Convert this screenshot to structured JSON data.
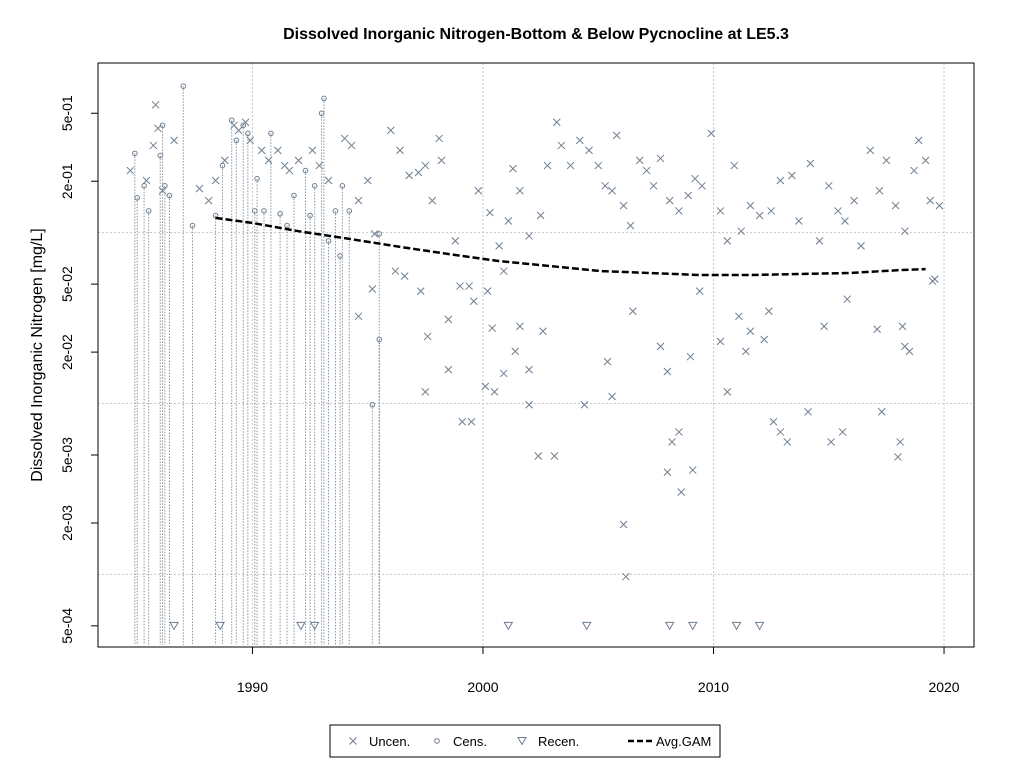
{
  "chart_data": {
    "type": "scatter",
    "title": "Dissolved Inorganic Nitrogen-Bottom & Below Pycnocline at LE5.3",
    "ylabel": "Dissolved Inorganic Nitrogen [mg/L]",
    "log_y": true,
    "xlim": [
      1983.3,
      2021.3
    ],
    "ylim": [
      0.000376,
      0.984
    ],
    "xticks": [
      1990,
      2000,
      2010,
      2020
    ],
    "yticks": [
      {
        "value": 0.5,
        "label": "5e-01"
      },
      {
        "value": 0.2,
        "label": "2e-01"
      },
      {
        "value": 0.05,
        "label": "5e-02"
      },
      {
        "value": 0.02,
        "label": "2e-02"
      },
      {
        "value": 0.005,
        "label": "5e-03"
      },
      {
        "value": 0.002,
        "label": "2e-03"
      },
      {
        "value": 0.0005,
        "label": "5e-04"
      }
    ],
    "ygrid": [
      0.1,
      0.01,
      0.001
    ],
    "grid": true,
    "legend": "bottom",
    "series": [
      {
        "name": "Uncen.",
        "marker": "x",
        "color": "#6e7f91",
        "x": [
          1984.7,
          1985.8,
          1985.9,
          1985.7,
          1985.4,
          1986.1,
          1986.6,
          1987.7,
          1988.1,
          1988.4,
          1988.8,
          1989.2,
          1989.4,
          1989.7,
          1989.9,
          1990.4,
          1990.7,
          1991.1,
          1991.4,
          1991.6,
          1992.0,
          1992.6,
          1992.9,
          1993.3,
          1994.0,
          1994.3,
          1994.6,
          1995.0,
          1995.3,
          1996.0,
          1996.4,
          1996.8,
          1997.2,
          1997.5,
          1998.1,
          1997.8,
          1998.2,
          1998.8,
          1999.0,
          1999.4,
          1999.6,
          1999.8,
          2000.2,
          2000.3,
          2000.7,
          2000.9,
          2001.1,
          2001.3,
          2001.6,
          2002.0,
          2002.5,
          2002.8,
          2003.2,
          2003.4,
          2003.8,
          2004.2,
          2004.6,
          2005.0,
          2005.3,
          2005.6,
          2005.8,
          2006.1,
          2006.4,
          2006.8,
          2007.1,
          2007.4,
          2007.7,
          2008.1,
          2008.5,
          2008.9,
          2009.2,
          2009.5,
          2009.9,
          2010.3,
          2010.6,
          2010.9,
          2011.2,
          2011.6,
          2012.0,
          2012.5,
          2012.9,
          2013.4,
          2013.7,
          2014.2,
          2014.6,
          2015.0,
          2015.4,
          2015.7,
          2016.1,
          2016.4,
          2016.8,
          2017.2,
          2017.5,
          2017.9,
          2018.3,
          2018.7,
          2018.9,
          2019.2,
          2019.4,
          2019.8,
          1994.6,
          1995.2,
          1996.2,
          1996.6,
          1997.3,
          1997.6,
          1997.5,
          1998.5,
          1998.5,
          1999.1,
          1999.5,
          2000.1,
          2000.5,
          2000.4,
          2000.9,
          2001.4,
          2001.6,
          2002.0,
          2002.4,
          2002.0,
          2002.6,
          2003.1,
          2004.4,
          2005.4,
          2005.6,
          2006.1,
          2006.2,
          2006.5,
          2007.7,
          2008.0,
          2008.0,
          2008.2,
          2008.5,
          2008.6,
          2009.0,
          2009.1,
          2009.4,
          2010.3,
          2010.6,
          2011.1,
          2011.4,
          2011.6,
          2012.2,
          2012.4,
          2012.6,
          2012.9,
          2013.2,
          2014.1,
          2014.8,
          2015.1,
          2015.6,
          2015.8,
          2017.1,
          2017.3,
          2018.2,
          2018.3,
          2018.1,
          2018.0,
          2018.5,
          2019.5,
          2019.6
        ],
        "values": [
          0.231,
          0.56,
          0.408,
          0.324,
          0.202,
          0.176,
          0.347,
          0.181,
          0.154,
          0.202,
          0.265,
          0.425,
          0.397,
          0.443,
          0.347,
          0.303,
          0.265,
          0.303,
          0.247,
          0.231,
          0.265,
          0.303,
          0.247,
          0.202,
          0.356,
          0.324,
          0.154,
          0.202,
          0.0984,
          0.397,
          0.303,
          0.216,
          0.225,
          0.247,
          0.356,
          0.154,
          0.265,
          0.0895,
          0.0487,
          0.0487,
          0.0397,
          0.176,
          0.0455,
          0.131,
          0.0837,
          0.0596,
          0.117,
          0.237,
          0.176,
          0.0957,
          0.126,
          0.247,
          0.443,
          0.324,
          0.247,
          0.347,
          0.303,
          0.247,
          0.188,
          0.176,
          0.371,
          0.144,
          0.11,
          0.265,
          0.231,
          0.188,
          0.272,
          0.154,
          0.134,
          0.165,
          0.207,
          0.188,
          0.381,
          0.134,
          0.0895,
          0.247,
          0.102,
          0.144,
          0.126,
          0.134,
          0.202,
          0.216,
          0.117,
          0.254,
          0.0895,
          0.188,
          0.134,
          0.117,
          0.154,
          0.0837,
          0.303,
          0.176,
          0.265,
          0.144,
          0.102,
          0.231,
          0.347,
          0.265,
          0.154,
          0.144,
          0.0324,
          0.0468,
          0.0596,
          0.0557,
          0.0455,
          0.0247,
          0.0117,
          0.0311,
          0.0158,
          0.00782,
          0.00782,
          0.0126,
          0.0117,
          0.0276,
          0.015,
          0.0202,
          0.0283,
          0.00984,
          0.00493,
          0.0158,
          0.0265,
          0.00493,
          0.00984,
          0.0176,
          0.011,
          0.00196,
          0.00097,
          0.0347,
          0.0216,
          0.00397,
          0.0154,
          0.00596,
          0.00682,
          0.00303,
          0.0188,
          0.00408,
          0.0455,
          0.0231,
          0.0117,
          0.0324,
          0.0202,
          0.0265,
          0.0237,
          0.0347,
          0.00782,
          0.00682,
          0.00596,
          0.00895,
          0.0283,
          0.00596,
          0.00682,
          0.0408,
          0.0272,
          0.00895,
          0.0283,
          0.0216,
          0.00596,
          0.00487,
          0.0202,
          0.0521,
          0.0535
        ]
      },
      {
        "name": "Cens.",
        "marker": "circle",
        "color": "#6e7f91",
        "x": [
          1984.9,
          1985.0,
          1985.3,
          1985.5,
          1986.0,
          1986.1,
          1986.2,
          1986.4,
          1987.0,
          1987.4,
          1988.4,
          1988.7,
          1989.1,
          1989.3,
          1989.6,
          1989.8,
          1990.1,
          1990.2,
          1990.5,
          1990.8,
          1991.2,
          1991.5,
          1991.8,
          1992.3,
          1992.5,
          1992.7,
          1993.0,
          1993.1,
          1993.3,
          1993.6,
          1993.8,
          1993.9,
          1994.2,
          1995.2,
          1995.5,
          1995.5
        ],
        "values": [
          0.291,
          0.16,
          0.188,
          0.134,
          0.283,
          0.425,
          0.188,
          0.165,
          0.72,
          0.11,
          0.126,
          0.247,
          0.455,
          0.347,
          0.425,
          0.381,
          0.134,
          0.207,
          0.134,
          0.381,
          0.129,
          0.11,
          0.165,
          0.231,
          0.126,
          0.188,
          0.5,
          0.61,
          0.0895,
          0.134,
          0.0731,
          0.188,
          0.134,
          0.00984,
          0.0237,
          0.0984
        ]
      },
      {
        "name": "Recen.",
        "marker": "triangle",
        "color": "#6e7f91",
        "x": [
          1986.6,
          1988.6,
          1992.1,
          1992.7,
          2001.1,
          2004.5,
          2008.1,
          2009.1,
          2011.0,
          2012.0
        ],
        "values": [
          0.0005,
          0.0005,
          0.0005,
          0.0005,
          0.0005,
          0.0005,
          0.0005,
          0.0005,
          0.0005,
          0.0005
        ]
      },
      {
        "name": "Avg.GAM",
        "marker": "dashed-line",
        "color": "#000000",
        "x": [
          1988.4,
          1990.0,
          1992.0,
          1994.2,
          1996.4,
          1998.5,
          2000.7,
          2002.9,
          2005.1,
          2007.2,
          2009.4,
          2011.6,
          2013.7,
          2015.9,
          2018.1,
          2019.2
        ],
        "values": [
          0.122,
          0.114,
          0.102,
          0.092,
          0.0826,
          0.075,
          0.0682,
          0.0638,
          0.0596,
          0.0581,
          0.0565,
          0.0565,
          0.0573,
          0.0581,
          0.0604,
          0.0612
        ]
      }
    ]
  }
}
